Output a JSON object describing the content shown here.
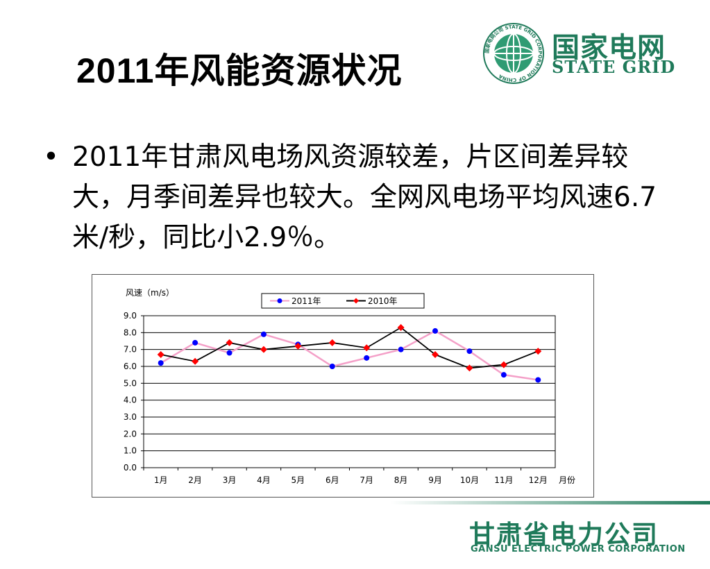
{
  "slide": {
    "title": "2011年风能资源状况",
    "bullet_text": "2011年甘肃风电场风资源较差，片区间差异较大，月季间差异也较大。全网风电场平均风速6.7米/秒，同比小2.9％。"
  },
  "logo": {
    "cn": "国家电网",
    "en": "STATE GRID",
    "ring_text": "国家电网公司 STATE GRID CORPORATION OF CHINA"
  },
  "footer": {
    "cn": "甘肃省电力公司",
    "en": "GANSU ELECTRIC POWER CORPORATION"
  },
  "colors": {
    "brand_green": "#1f7a5a",
    "series_2011": "#f4a0c8",
    "series_2011_marker": "#0000ff",
    "series_2010": "#000000",
    "series_2010_marker": "#ff0000"
  },
  "chart_data": {
    "type": "line",
    "ylabel": "风速（m/s）",
    "xlabel": "月份",
    "categories": [
      "1月",
      "2月",
      "3月",
      "4月",
      "5月",
      "6月",
      "7月",
      "8月",
      "9月",
      "10月",
      "11月",
      "12月"
    ],
    "ylim": [
      0,
      9
    ],
    "yticks": [
      "0.0",
      "1.0",
      "2.0",
      "3.0",
      "4.0",
      "5.0",
      "6.0",
      "7.0",
      "8.0",
      "9.0"
    ],
    "grid": true,
    "legend": "top",
    "series": [
      {
        "name": "2011年",
        "values": [
          6.2,
          7.4,
          6.8,
          7.9,
          7.3,
          6.0,
          6.5,
          7.0,
          8.1,
          6.9,
          5.5,
          5.2
        ]
      },
      {
        "name": "2010年",
        "values": [
          6.7,
          6.3,
          7.4,
          7.0,
          7.2,
          7.4,
          7.1,
          8.3,
          6.7,
          5.9,
          6.1,
          6.9
        ]
      }
    ]
  }
}
